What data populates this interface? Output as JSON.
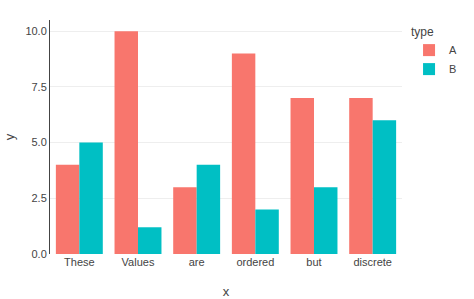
{
  "chart_data": {
    "type": "bar",
    "categories": [
      "These",
      "Values",
      "are",
      "ordered",
      "but",
      "discrete"
    ],
    "series": [
      {
        "name": "A",
        "color": "#F8766D",
        "values": [
          4.0,
          10.0,
          3.0,
          9.0,
          7.0,
          7.0
        ]
      },
      {
        "name": "B",
        "color": "#00BFC4",
        "values": [
          5.0,
          1.2,
          4.0,
          2.0,
          3.0,
          6.0
        ]
      }
    ],
    "xlabel": "x",
    "ylabel": "y",
    "ylim": [
      0,
      10.5
    ],
    "yticks": [
      {
        "value": 0.0,
        "label": "0.0"
      },
      2.5,
      {
        "value": 5.0,
        "label": "5.0"
      },
      7.5,
      {
        "value": 10.0,
        "label": "10.0"
      }
    ],
    "legend_title": "type",
    "legend": "right",
    "grid": true
  }
}
